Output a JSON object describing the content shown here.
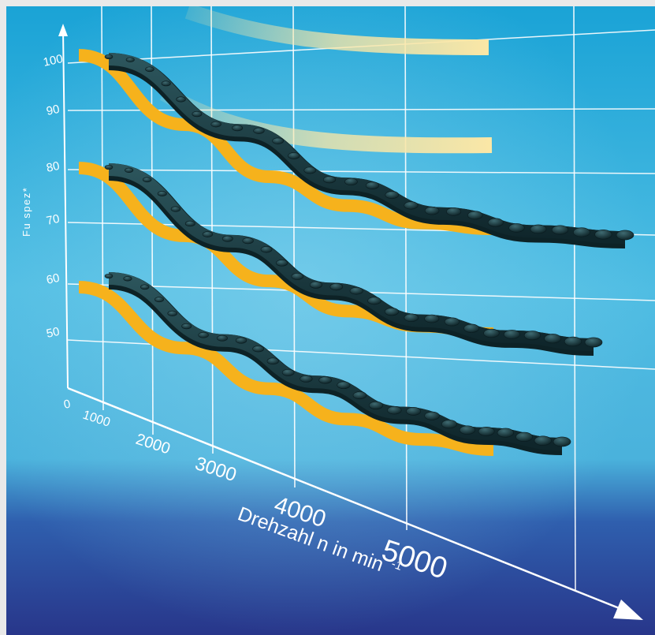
{
  "chart_data": {
    "type": "line",
    "ylabel": "Fu spez*",
    "xlabel": "Drehzahl n in min",
    "xlabel_sup": "-1",
    "y_ticks": [
      "0",
      "50",
      "60",
      "70",
      "80",
      "90",
      "100"
    ],
    "x_ticks": [
      "1000",
      "2000",
      "3000",
      "4000",
      "5000"
    ],
    "x": [
      0,
      1000,
      2000,
      3000,
      4000,
      5000
    ],
    "series": [
      {
        "values": [
          100,
          88,
          79,
          74,
          71,
          70
        ]
      },
      {
        "values": [
          82,
          73,
          67,
          63,
          61,
          60
        ]
      },
      {
        "values": [
          60,
          54,
          50,
          47,
          45,
          44
        ]
      }
    ],
    "ylim": [
      0,
      100
    ],
    "xlim": [
      0,
      5000
    ],
    "grid": true,
    "colors": {
      "bg_top": "#1fa6d6",
      "bg_mid": "#5cc2e4",
      "bg_bottom": "#2a3a8e",
      "curve": "#f6b21c",
      "curve_light": "#fbe7a6",
      "belt": "#1b3a40",
      "grid": "#ffffff"
    }
  }
}
